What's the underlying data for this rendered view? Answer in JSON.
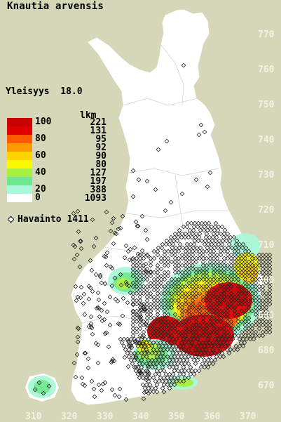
{
  "title": "Knautia arvensis",
  "stat": {
    "label": "Yleisyys",
    "value": "18.0"
  },
  "legend": {
    "count_header": "lkm",
    "rows": [
      {
        "pct": "100",
        "color": "#c80000",
        "count": "221"
      },
      {
        "pct": "",
        "color": "#e00000",
        "count": "131"
      },
      {
        "pct": "80",
        "color": "#ff5a00",
        "count": "95"
      },
      {
        "pct": "",
        "color": "#ff9a00",
        "count": "92"
      },
      {
        "pct": "60",
        "color": "#ffd200",
        "count": "90"
      },
      {
        "pct": "",
        "color": "#f8f800",
        "count": "80"
      },
      {
        "pct": "40",
        "color": "#a8f040",
        "count": "127"
      },
      {
        "pct": "",
        "color": "#70e890",
        "count": "197"
      },
      {
        "pct": "20",
        "color": "#a8f8d8",
        "count": "388"
      },
      {
        "pct": "0",
        "color": "#ffffff",
        "count": "1093"
      }
    ]
  },
  "observation": {
    "label": "Havainto",
    "count": "1411"
  },
  "y_axis_labels": [
    "770",
    "760",
    "750",
    "740",
    "730",
    "720",
    "710",
    "700",
    "690",
    "680",
    "670"
  ],
  "x_axis_labels": [
    "310",
    "320",
    "330",
    "340",
    "350",
    "360",
    "370"
  ],
  "colors": {
    "background": "#d6d6b8",
    "land": "#ffffff",
    "axis_text": "#f2f2e6"
  }
}
